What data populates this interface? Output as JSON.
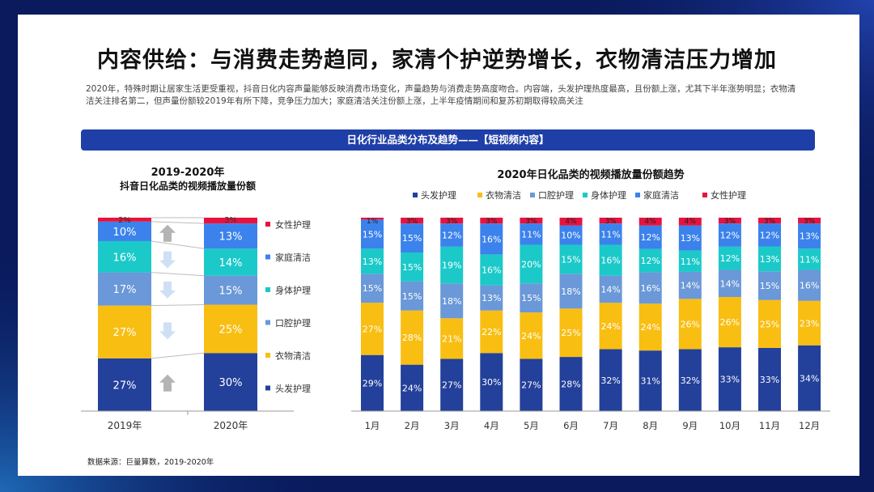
{
  "page": {
    "title": "内容供给：与消费走势趋同，家清个护逆势增长，衣物清洁压力增加",
    "description": "2020年，特殊时期让居家生活更受重视，抖音日化内容声量能够反映消费市场变化，声量趋势与消费走势高度吻合。内容端，头发护理热度最高，且份额上涨，尤其下半年涨势明显；衣物清洁关注排名第二，但声量份额较2019年有所下降，竞争压力加大；家庭清洁关注份额上涨，上半年疫情期间和复苏初期取得较高关注",
    "banner": "日化行业品类分布及趋势——【短视频内容】",
    "source": "数据来源：巨量算数，2019-2020年"
  },
  "colors": {
    "头发护理": "#23409a",
    "衣物清洁": "#f9be12",
    "口腔护理": "#6a98d8",
    "身体护理": "#1bc9c9",
    "家庭清洁": "#3b82ec",
    "女性护理": "#e8133d",
    "arrow_up": "#b4b4b4",
    "arrow_down": "#cfe0f6"
  },
  "chart_data": [
    {
      "type": "bar",
      "stacked": true,
      "normalized": true,
      "title": "2019-2020年",
      "subtitle": "抖音日化品类的视频播放量份额",
      "categories": [
        "2019年",
        "2020年"
      ],
      "series": [
        {
          "name": "头发护理",
          "values": [
            27,
            30
          ]
        },
        {
          "name": "衣物清洁",
          "values": [
            27,
            25
          ]
        },
        {
          "name": "口腔护理",
          "values": [
            17,
            15
          ]
        },
        {
          "name": "身体护理",
          "values": [
            16,
            14
          ]
        },
        {
          "name": "家庭清洁",
          "values": [
            10,
            13
          ]
        },
        {
          "name": "女性护理",
          "values": [
            2,
            3
          ]
        }
      ],
      "trend_arrows": [
        "up",
        "down",
        "down",
        "down",
        "up",
        ""
      ],
      "legend_order": [
        "女性护理",
        "家庭清洁",
        "身体护理",
        "口腔护理",
        "衣物清洁",
        "头发护理"
      ],
      "unit": "%"
    },
    {
      "type": "bar",
      "stacked": true,
      "normalized": true,
      "title": "2020年日化品类的视频播放量份额趋势",
      "categories": [
        "1月",
        "2月",
        "3月",
        "4月",
        "5月",
        "6月",
        "7月",
        "8月",
        "9月",
        "10月",
        "11月",
        "12月"
      ],
      "series": [
        {
          "name": "头发护理",
          "values": [
            29,
            24,
            27,
            30,
            27,
            28,
            32,
            31,
            32,
            33,
            33,
            34
          ]
        },
        {
          "name": "衣物清洁",
          "values": [
            27,
            28,
            21,
            22,
            24,
            25,
            24,
            24,
            26,
            26,
            25,
            23
          ]
        },
        {
          "name": "口腔护理",
          "values": [
            15,
            15,
            18,
            13,
            15,
            18,
            14,
            16,
            14,
            14,
            15,
            16
          ]
        },
        {
          "name": "身体护理",
          "values": [
            13,
            15,
            19,
            16,
            20,
            15,
            16,
            12,
            11,
            12,
            13,
            11
          ]
        },
        {
          "name": "家庭清洁",
          "values": [
            15,
            15,
            12,
            16,
            11,
            10,
            11,
            12,
            13,
            12,
            12,
            13
          ]
        },
        {
          "name": "女性护理",
          "values": [
            1,
            3,
            3,
            3,
            3,
            4,
            3,
            4,
            4,
            3,
            3,
            3
          ]
        }
      ],
      "legend": [
        "头发护理",
        "衣物清洁",
        "口腔护理",
        "身体护理",
        "家庭清洁",
        "女性护理"
      ],
      "unit": "%"
    }
  ]
}
